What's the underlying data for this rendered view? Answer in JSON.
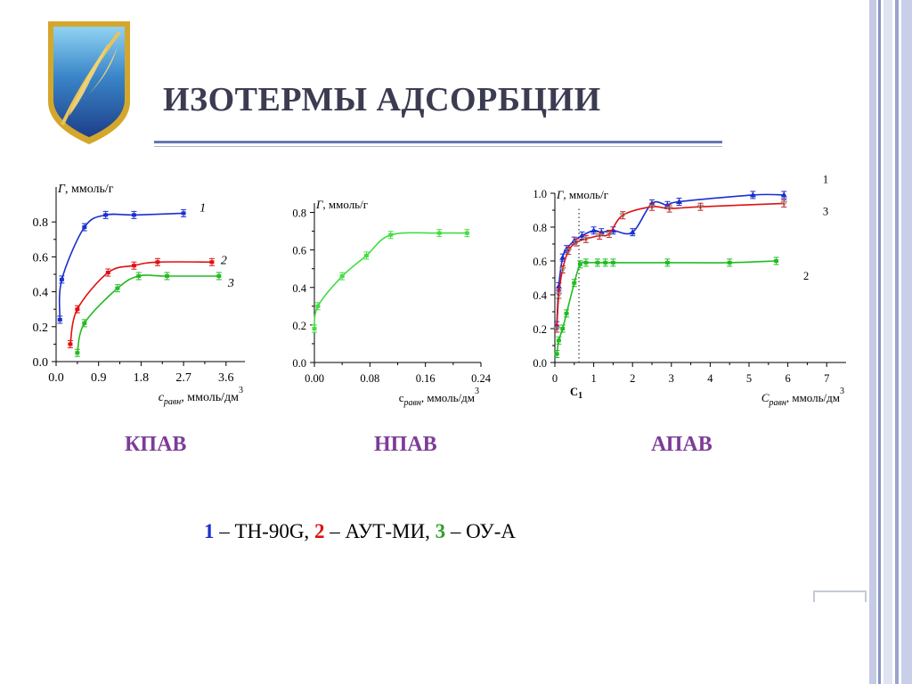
{
  "slide": {
    "title": "ИЗОТЕРМЫ АДСОРБЦИИ",
    "colors": {
      "title": "#3b3b52",
      "rule": "#6476b4",
      "caption": "#7d3c98",
      "series1": "#1a2fcf",
      "series2": "#e01010",
      "series3": "#2ea12e",
      "series3_light": "#44dd44"
    },
    "captions": [
      "КПАВ",
      "НПАВ",
      "АПАВ"
    ],
    "legend": {
      "n1": "1",
      "t1": " – ТН-90G, ",
      "n2": "2",
      "t2": " – АУТ-МИ, ",
      "n3": "3",
      "t3": " – ОУ-А"
    }
  },
  "chart_data": [
    {
      "type": "line",
      "title": "",
      "ylabel": "Г, ммоль/г",
      "xlabel_sub": "равн",
      "xlabel_pre": "c",
      "xlabel_post": ", ммоль/дм",
      "xlabel_sup": "3",
      "xlim": [
        0,
        4.0
      ],
      "ylim": [
        0,
        1.0
      ],
      "xticks": [
        "0.0",
        "0.9",
        "1.8",
        "2.7",
        "3.6"
      ],
      "yticks": [
        "0.0",
        "0.2",
        "0.4",
        "0.6",
        "0.8"
      ],
      "series": [
        {
          "name": "1",
          "color": "#1a2fcf",
          "x": [
            0.08,
            0.12,
            0.6,
            1.05,
            1.65,
            2.7
          ],
          "y": [
            0.24,
            0.47,
            0.77,
            0.84,
            0.84,
            0.85
          ]
        },
        {
          "name": "2",
          "color": "#e01010",
          "x": [
            0.3,
            0.45,
            1.1,
            1.65,
            2.15,
            3.3
          ],
          "y": [
            0.1,
            0.3,
            0.51,
            0.55,
            0.57,
            0.57
          ]
        },
        {
          "name": "3",
          "color": "#22bb22",
          "x": [
            0.45,
            0.6,
            1.3,
            1.75,
            2.35,
            3.45
          ],
          "y": [
            0.05,
            0.22,
            0.42,
            0.49,
            0.49,
            0.49
          ]
        }
      ]
    },
    {
      "type": "line",
      "title": "",
      "ylabel": "Г, ммоль/г",
      "xlabel_pre": "с",
      "xlabel_sub": "равн",
      "xlabel_post": ", ммоль/дм",
      "xlabel_sup": "3",
      "xlim": [
        0,
        0.24
      ],
      "ylim": [
        0,
        0.85
      ],
      "xticks": [
        "0.00",
        "0.08",
        "0.16",
        "0.24"
      ],
      "yticks": [
        "0.0",
        "0.2",
        "0.4",
        "0.6",
        "0.8"
      ],
      "series": [
        {
          "name": "",
          "color": "#44dd44",
          "x": [
            0.0,
            0.005,
            0.04,
            0.075,
            0.11,
            0.18,
            0.22
          ],
          "y": [
            0.18,
            0.3,
            0.46,
            0.57,
            0.68,
            0.69,
            0.69
          ]
        }
      ]
    },
    {
      "type": "line",
      "title": "",
      "ylabel": "Г, ммоль/г",
      "xlabel_pre": "C",
      "xlabel_sub": "равн",
      "xlabel_post": ", ммоль/дм",
      "xlabel_sup": "3",
      "xlim": [
        0,
        7.5
      ],
      "ylim": [
        0,
        1.0
      ],
      "xticks": [
        "0",
        "1",
        "2",
        "3",
        "4",
        "5",
        "6",
        "7"
      ],
      "yticks": [
        "0.0",
        "0.2",
        "0.4",
        "0.6",
        "0.8",
        "1.0"
      ],
      "annotation": {
        "label": "C",
        "sub": "1",
        "x": 0.62
      },
      "series": [
        {
          "name": "1",
          "color": "#1a2fcf",
          "x": [
            0.05,
            0.1,
            0.2,
            0.3,
            0.5,
            0.7,
            1.0,
            1.2,
            1.5,
            2.0,
            2.5,
            2.9,
            3.2,
            5.1,
            5.9
          ],
          "y": [
            0.22,
            0.45,
            0.62,
            0.67,
            0.72,
            0.75,
            0.78,
            0.77,
            0.78,
            0.77,
            0.94,
            0.93,
            0.95,
            0.99,
            0.99
          ]
        },
        {
          "name": "2",
          "color": "#22bb22",
          "x": [
            0.05,
            0.1,
            0.2,
            0.3,
            0.5,
            0.65,
            0.8,
            1.1,
            1.3,
            1.5,
            2.9,
            4.5,
            5.7
          ],
          "y": [
            0.05,
            0.13,
            0.2,
            0.29,
            0.47,
            0.58,
            0.59,
            0.59,
            0.59,
            0.59,
            0.59,
            0.59,
            0.6
          ]
        },
        {
          "name": "3",
          "color": "#e01010",
          "x": [
            0.05,
            0.1,
            0.2,
            0.35,
            0.55,
            0.8,
            1.15,
            1.4,
            1.75,
            2.5,
            2.95,
            3.75,
            5.9
          ],
          "y": [
            0.2,
            0.4,
            0.55,
            0.66,
            0.71,
            0.73,
            0.75,
            0.76,
            0.87,
            0.92,
            0.91,
            0.92,
            0.94
          ]
        }
      ],
      "series_label_markers": {
        "1": "1",
        "2": "2",
        "3": "3"
      }
    }
  ]
}
